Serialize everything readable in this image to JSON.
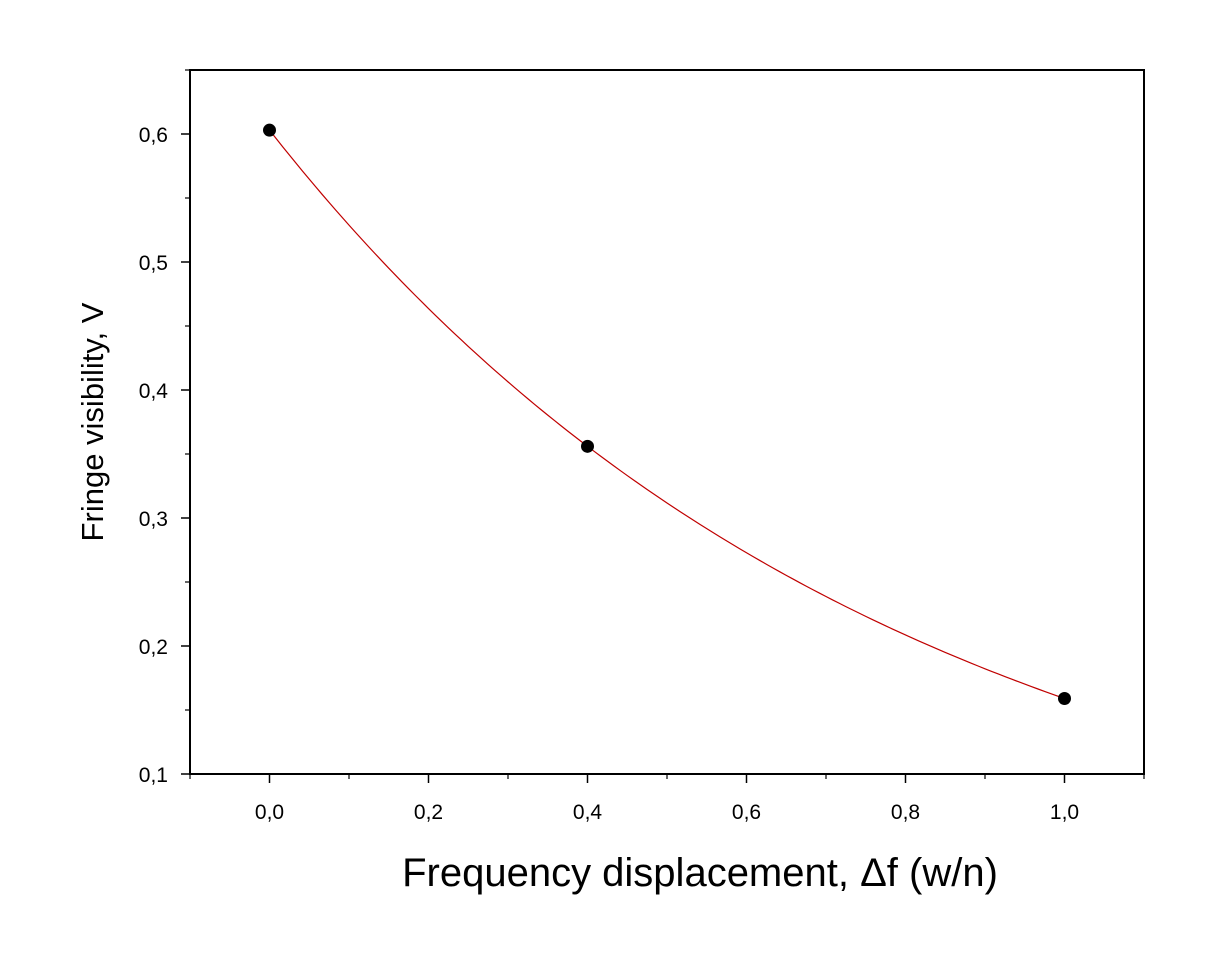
{
  "chart_data": {
    "type": "scatter",
    "title": "",
    "xlabel": "Frequency displacement, Δf (w/n)",
    "ylabel": "Fringe visibility, V",
    "xlim": [
      -0.1,
      1.1
    ],
    "ylim": [
      0.1,
      0.65
    ],
    "x_ticks": [
      0.0,
      0.2,
      0.4,
      0.6,
      0.8,
      1.0
    ],
    "x_tick_labels": [
      "0,0",
      "0,2",
      "0,4",
      "0,6",
      "0,8",
      "1,0"
    ],
    "y_ticks": [
      0.1,
      0.2,
      0.3,
      0.4,
      0.5,
      0.6
    ],
    "y_tick_labels": [
      "0,1",
      "0,2",
      "0,3",
      "0,4",
      "0,5",
      "0,6"
    ],
    "grid": false,
    "legend": "none",
    "series": [
      {
        "kind": "points",
        "color": "#000000",
        "x": [
          0.0,
          0.4,
          1.0
        ],
        "y": [
          0.603,
          0.356,
          0.159
        ]
      },
      {
        "kind": "fit-curve",
        "color": "#c00000",
        "model": "exponential",
        "x_range": [
          0.0,
          1.0
        ]
      }
    ]
  }
}
